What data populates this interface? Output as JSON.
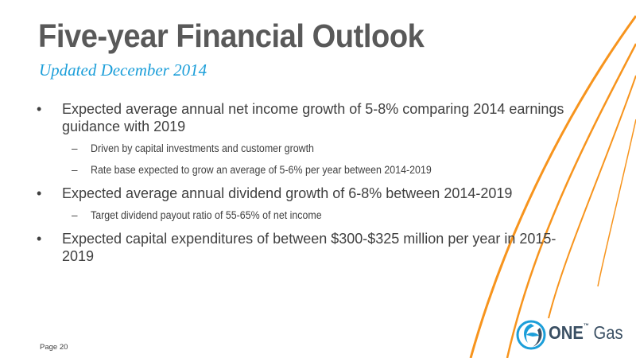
{
  "slide": {
    "title": "Five-year Financial Outlook",
    "subtitle": "Updated December 2014",
    "page_label": "Page 20"
  },
  "bullets": [
    {
      "text": "Expected average annual net income growth of 5-8% comparing 2014 earnings guidance with 2019",
      "subs": [
        "Driven by capital investments and customer growth",
        "Rate base expected to grow an average of 5-6% per year between 2014-2019"
      ]
    },
    {
      "text": "Expected average annual dividend growth of 6-8% between 2014-2019",
      "subs": [
        "Target dividend payout ratio of 55-65% of net income"
      ]
    },
    {
      "text": "Expected capital expenditures of between $300-$325 million per year in 2015-2019",
      "subs": []
    }
  ],
  "symbols": {
    "bullet": "•",
    "dash": "–"
  },
  "logo": {
    "bold": "ONE",
    "light": "Gas",
    "mark": "™"
  },
  "colors": {
    "accent": "#1b9ed9",
    "swoosh": "#f7941d",
    "title": "#595959",
    "text": "#404040"
  }
}
